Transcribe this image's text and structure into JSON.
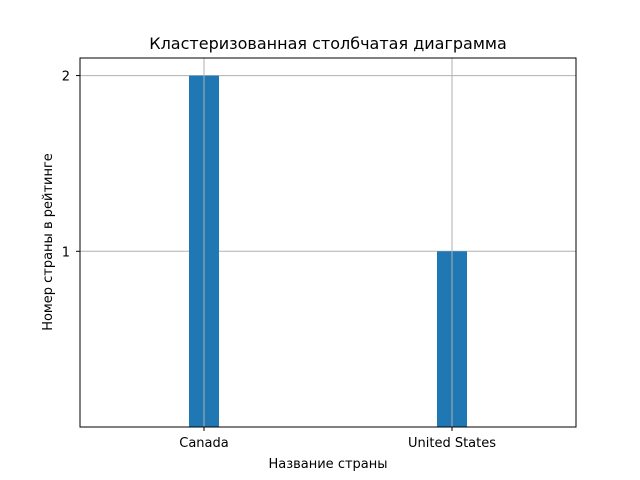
{
  "chart_data": {
    "type": "bar",
    "title": "Кластеризованная столбчатая диаграмма",
    "xlabel": "Название страны",
    "ylabel": "Номер страны в рейтинге",
    "categories": [
      "Canada",
      "United States"
    ],
    "values": [
      2,
      1
    ],
    "ylim": [
      0,
      2.1
    ],
    "yticks": [
      "1",
      "2"
    ],
    "grid": true,
    "bar_color": "#1f77b4",
    "grid_color": "#b0b0b0"
  }
}
